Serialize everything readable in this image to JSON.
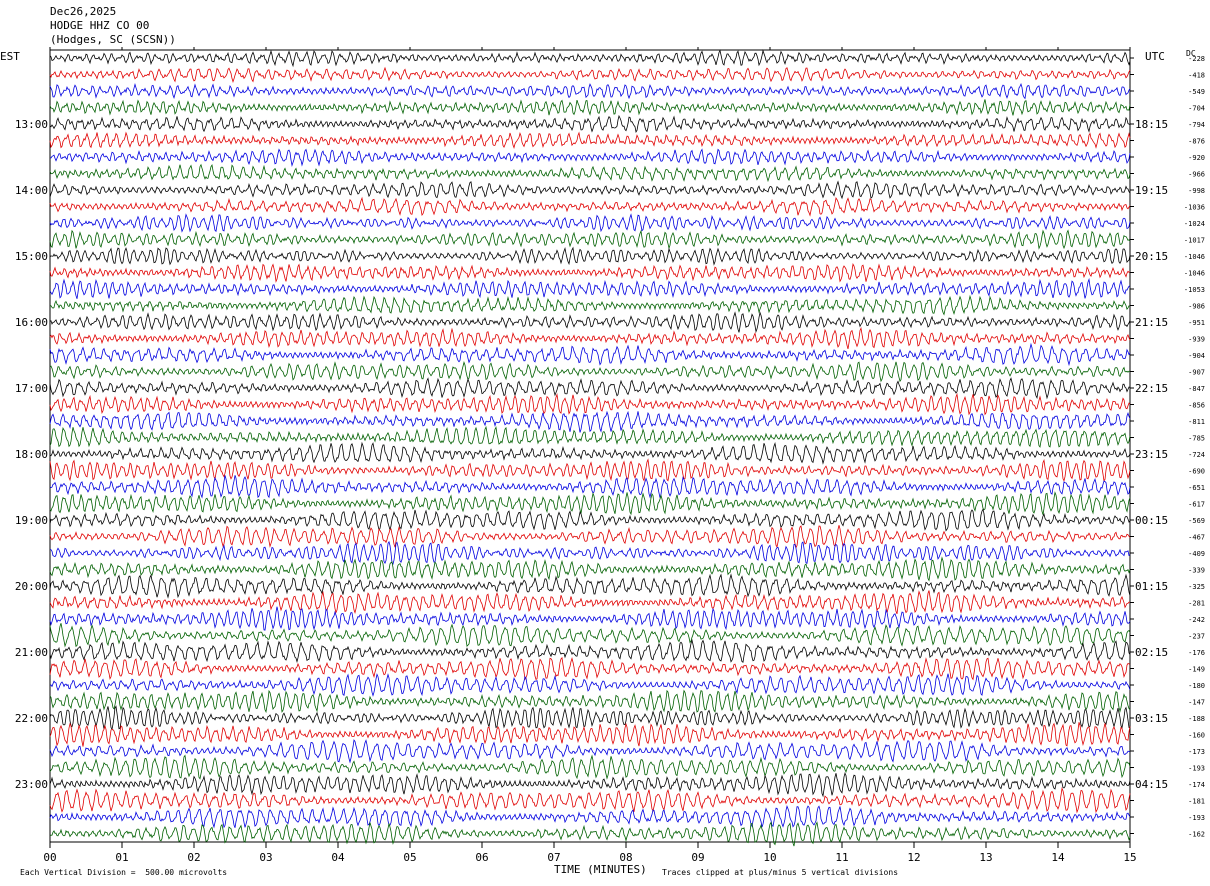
{
  "header": {
    "date": "Dec26,2025",
    "station": "HODGE HHZ CO 00",
    "location": "(Hodges, SC (SCSN))"
  },
  "chart_data": {
    "type": "line",
    "left_axis_title": "EST",
    "right_axis_title": "UTC",
    "dc_title": "DC",
    "xlabel": "TIME (MINUTES)",
    "x_ticks": [
      "00",
      "01",
      "02",
      "03",
      "04",
      "05",
      "06",
      "07",
      "08",
      "09",
      "10",
      "11",
      "12",
      "13",
      "14",
      "15"
    ],
    "xlim": [
      0,
      15
    ],
    "num_traces": 48,
    "trace_colors": [
      "#000000",
      "#e00000",
      "#0000e0",
      "#006000"
    ],
    "left_hour_labels": [
      "13:00",
      "14:00",
      "15:00",
      "16:00",
      "17:00",
      "18:00",
      "19:00",
      "20:00",
      "21:00",
      "22:00",
      "23:00"
    ],
    "right_hour_labels": [
      "18:15",
      "19:15",
      "20:15",
      "21:15",
      "22:15",
      "23:15",
      "00:15",
      "01:15",
      "02:15",
      "03:15",
      "04:15"
    ],
    "dc_offsets": [
      "-228",
      "-418",
      "-549",
      "-704",
      "-794",
      "-876",
      "-920",
      "-966",
      "-998",
      "-1036",
      "-1024",
      "-1017",
      "-1046",
      "-1046",
      "-1053",
      "-986",
      "-951",
      "-939",
      "-904",
      "-907",
      "-847",
      "-856",
      "-811",
      "-785",
      "-724",
      "-690",
      "-651",
      "-617",
      "-569",
      "-467",
      "-409",
      "-339",
      "-325",
      "-281",
      "-242",
      "-237",
      "-176",
      "-149",
      "-180",
      "-147",
      "-188",
      "-160",
      "-173",
      "-193",
      "-174",
      "-181",
      "-193",
      "-162"
    ],
    "footer_left": "Each Vertical Division =  500.00 microvolts",
    "footer_right": "Traces clipped at plus/minus 5 vertical divisions"
  }
}
